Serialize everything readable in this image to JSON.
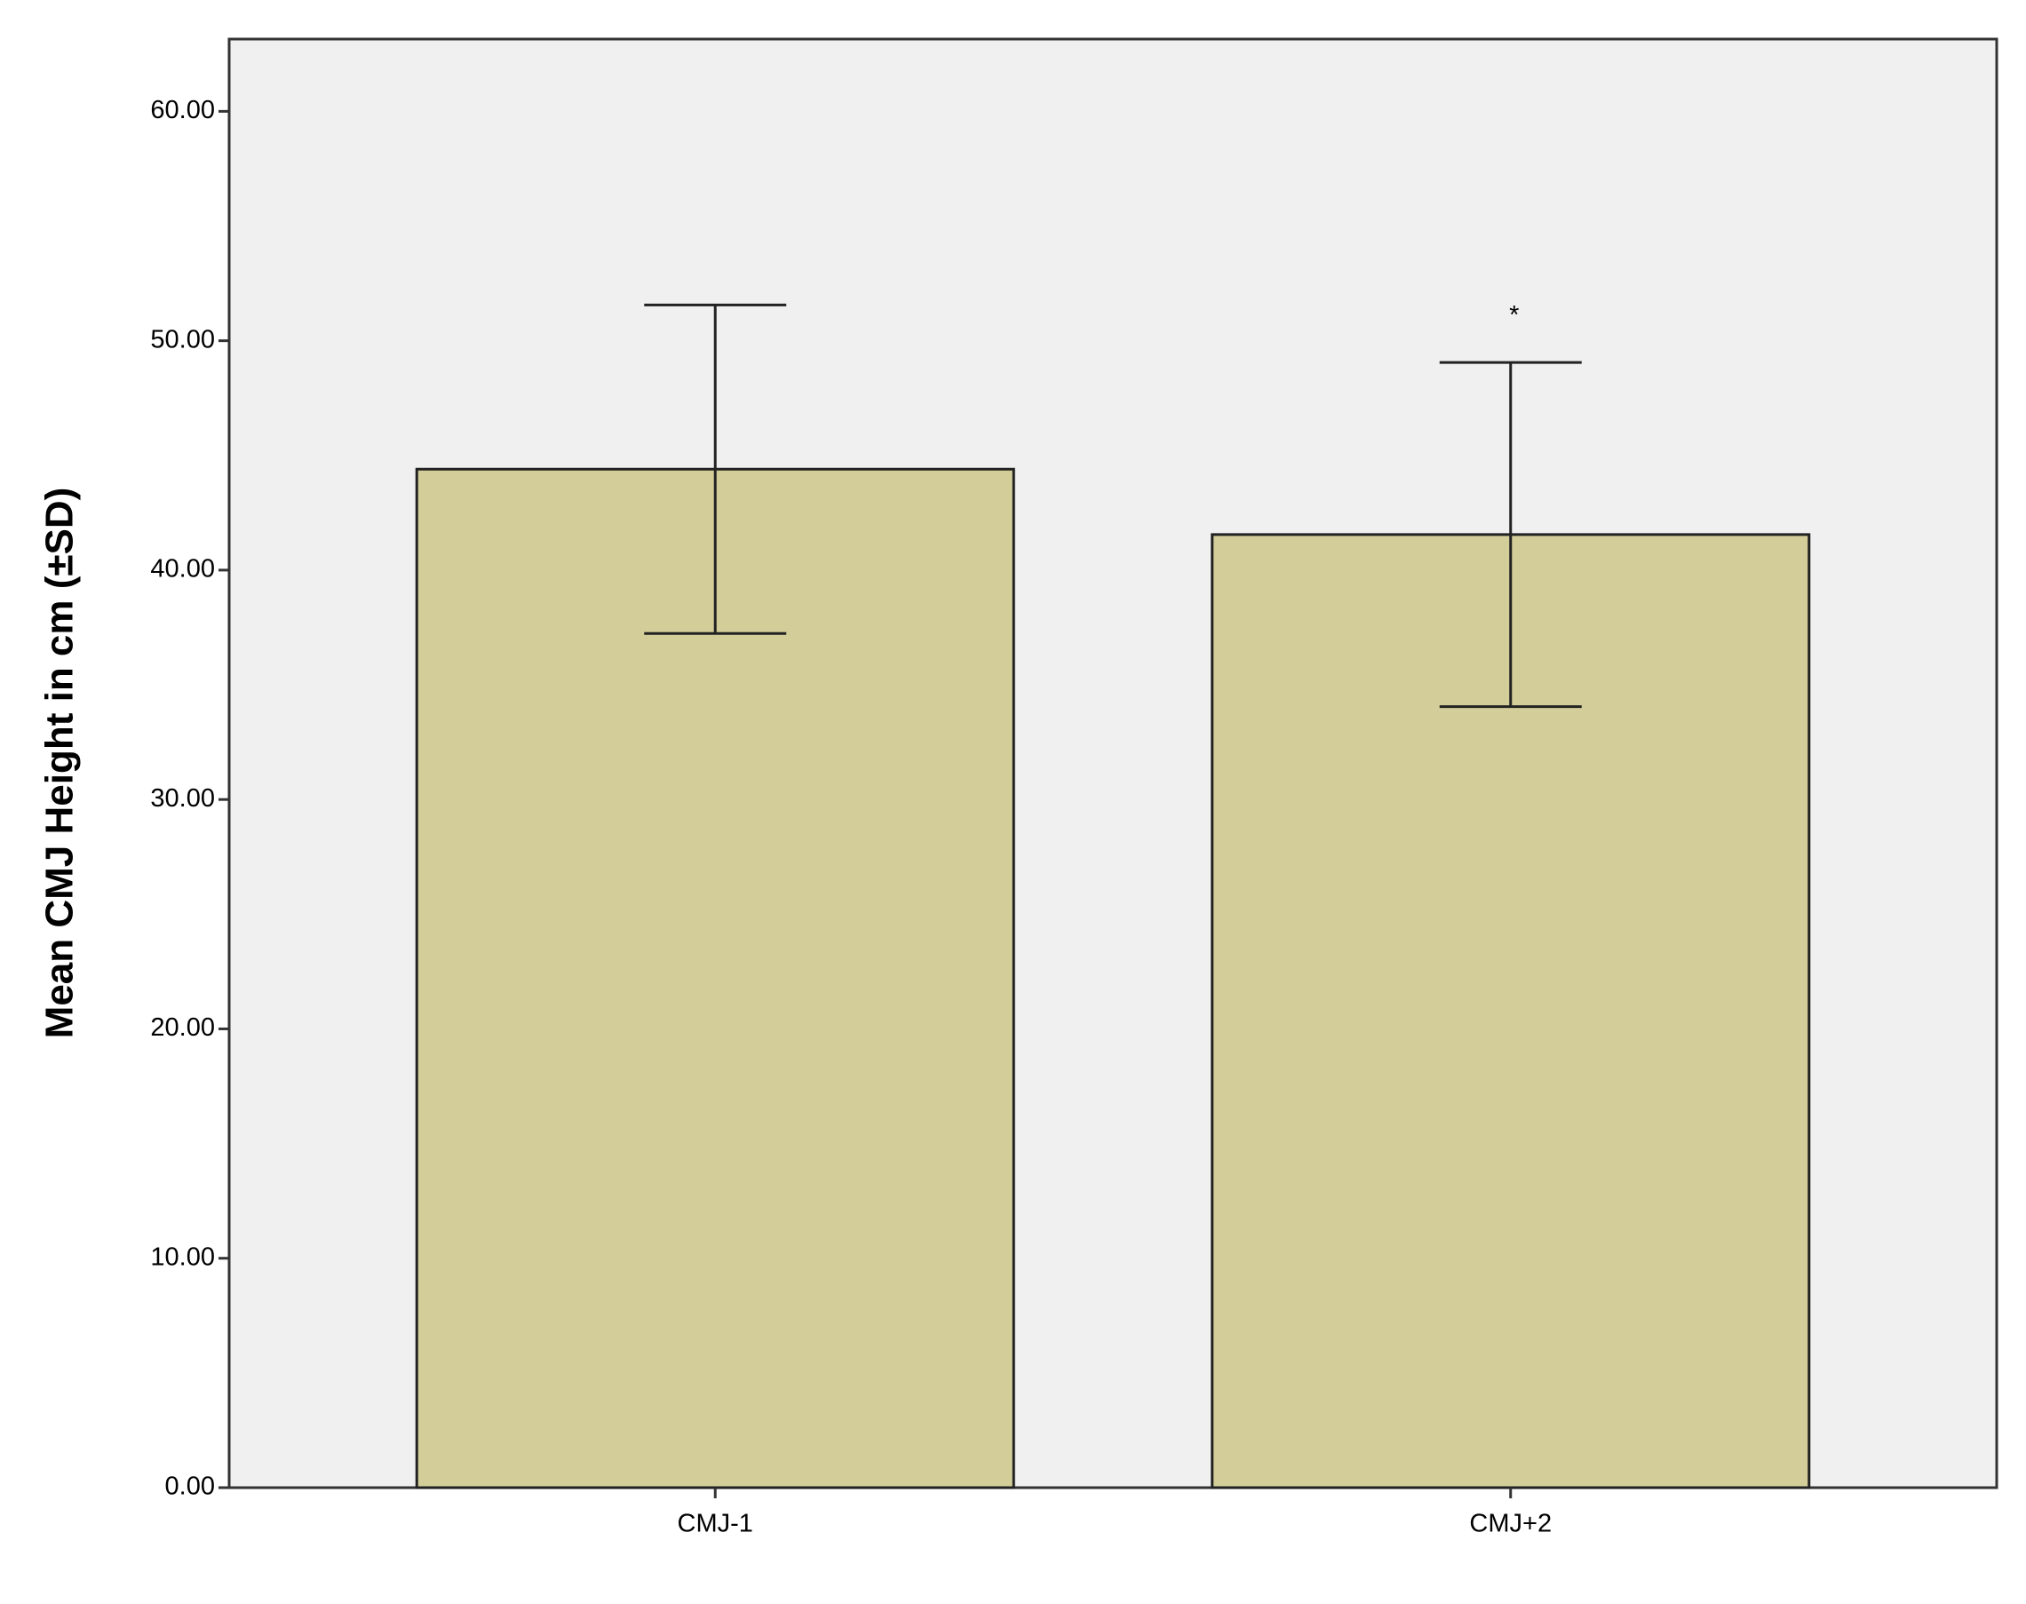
{
  "chart_data": {
    "type": "bar",
    "y_label": "Mean CMJ Height in cm (±SD)",
    "categories": [
      "CMJ-1",
      "CMJ+2"
    ],
    "values": [
      44.4,
      41.55
    ],
    "errors": [
      7.16,
      7.5
    ],
    "annotations": [
      null,
      "*"
    ],
    "color": "#d3ce99",
    "ylim": [
      0,
      63.15
    ],
    "yticks": [
      {
        "value": 0,
        "label": "0.00"
      },
      {
        "value": 10,
        "label": "10.00"
      },
      {
        "value": 20,
        "label": "20.00"
      },
      {
        "value": 30,
        "label": "30.00"
      },
      {
        "value": 40,
        "label": "40.00"
      },
      {
        "value": 50,
        "label": "50.00"
      },
      {
        "value": 60,
        "label": "60.00"
      }
    ],
    "grid": false
  }
}
